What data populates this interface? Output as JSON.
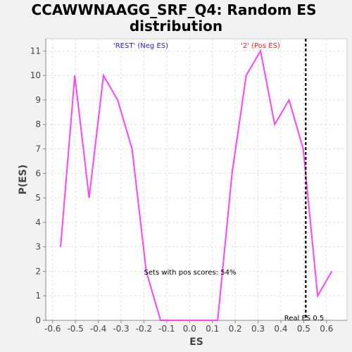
{
  "chart_data": {
    "type": "line",
    "title_line1": "CCAWWNAAGG_SRF_Q4: Random ES",
    "title_line2": "distribution",
    "xlabel": "ES",
    "ylabel": "P(ES)",
    "xlim": [
      -0.63,
      0.69
    ],
    "ylim": [
      0,
      11.5
    ],
    "xticks": [
      -0.6,
      -0.5,
      -0.4,
      -0.3,
      -0.2,
      -0.1,
      0.0,
      0.1,
      0.2,
      0.3,
      0.4,
      0.5,
      0.6
    ],
    "xtick_labels": [
      "-0.6",
      "-0.5",
      "-0.4",
      "-0.3",
      "-0.2",
      "-0.1",
      "0.0",
      "0.1",
      "0.2",
      "0.3",
      "0.4",
      "0.5",
      "0.6"
    ],
    "yticks": [
      0,
      1,
      2,
      3,
      4,
      5,
      6,
      7,
      8,
      9,
      10,
      11
    ],
    "ytick_labels": [
      "0",
      "1",
      "2",
      "3",
      "4",
      "5",
      "6",
      "7",
      "8",
      "9",
      "10",
      "11"
    ],
    "grid": true,
    "series": [
      {
        "color": "#ff44ff",
        "x": [
          -0.565,
          -0.503,
          -0.44,
          -0.377,
          -0.315,
          -0.252,
          -0.19,
          -0.127,
          -0.065,
          -0.002,
          0.06,
          0.123,
          0.186,
          0.248,
          0.311,
          0.373,
          0.436,
          0.498,
          0.561,
          0.623
        ],
        "y": [
          3,
          10,
          5,
          10,
          9,
          7,
          2,
          0,
          0,
          0,
          0,
          0,
          6,
          10,
          11,
          8,
          9,
          7,
          1,
          2
        ]
      }
    ],
    "real_es": 0.509,
    "annotations": {
      "neg_label": "'REST' (Neg ES)",
      "neg_color": "#2222cc",
      "pos_label": "'2' (Pos ES)",
      "pos_color": "#ee2222",
      "pos_scores": "Sets with pos scores: 54%",
      "real_es_label": "Real ES 0.5"
    }
  }
}
